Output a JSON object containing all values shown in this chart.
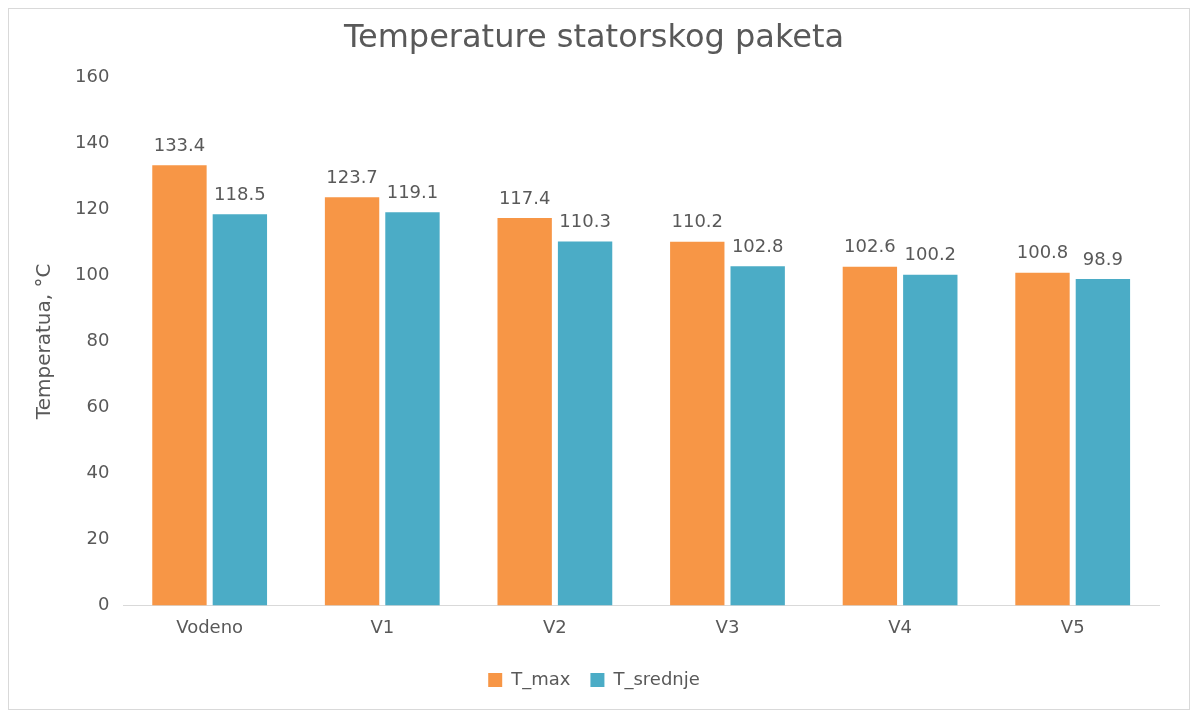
{
  "chart_data": {
    "type": "bar",
    "title": "Temperature statorskog paketa",
    "ylabel": "Temperatua, °C",
    "categories": [
      "Vodeno",
      "V1",
      "V2",
      "V3",
      "V4",
      "V5"
    ],
    "series": [
      {
        "name": "T_max",
        "color": "#f79646",
        "values": [
          133.4,
          123.7,
          117.4,
          110.2,
          102.6,
          100.8
        ]
      },
      {
        "name": "T_srednje",
        "color": "#4bacc6",
        "values": [
          118.5,
          119.1,
          110.3,
          102.8,
          100.2,
          98.9
        ]
      }
    ],
    "ylim": [
      0,
      160
    ],
    "yticks": [
      0,
      20,
      40,
      60,
      80,
      100,
      120,
      140,
      160
    ],
    "grid": false,
    "legend": "bottom",
    "data_labels": true
  }
}
